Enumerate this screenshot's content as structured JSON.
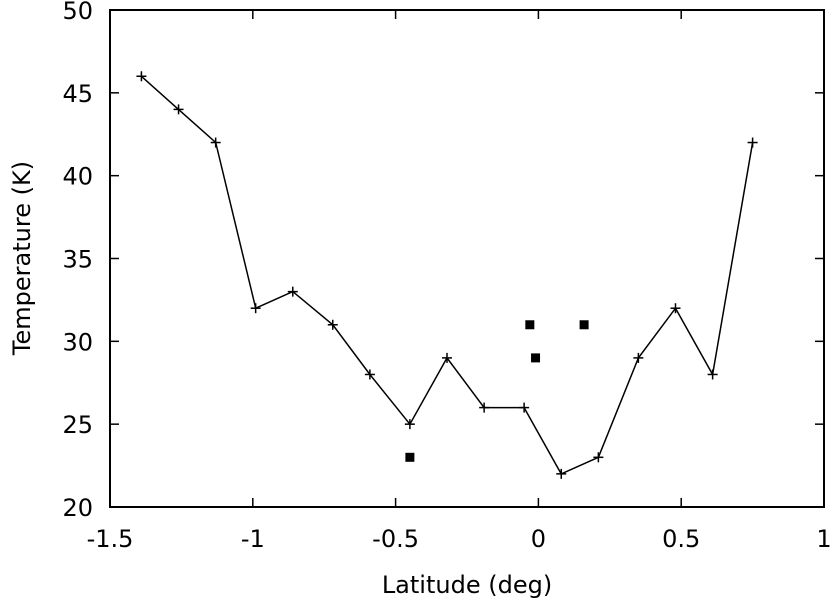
{
  "chart_data": {
    "type": "line",
    "title": "",
    "xlabel": "Latitude (deg)",
    "ylabel": "Temperature (K)",
    "xlim": [
      -1.5,
      1
    ],
    "ylim": [
      20,
      50
    ],
    "xticks": [
      -1.5,
      -1,
      -0.5,
      0,
      0.5,
      1
    ],
    "yticks": [
      20,
      25,
      30,
      35,
      40,
      45,
      50
    ],
    "xtick_labels": [
      "-1.5",
      "-1",
      "-0.5",
      "0",
      "0.5",
      "1"
    ],
    "ytick_labels": [
      "20",
      "25",
      "30",
      "35",
      "40",
      "45",
      "50"
    ],
    "grid": false,
    "legend": "none",
    "series": [
      {
        "style": "line-with-plus-markers",
        "color": "#000000",
        "x": [
          -1.39,
          -1.26,
          -1.13,
          -0.99,
          -0.86,
          -0.72,
          -0.59,
          -0.45,
          -0.32,
          -0.19,
          -0.05,
          0.08,
          0.21,
          0.35,
          0.48,
          0.61,
          0.75
        ],
        "y": [
          46,
          44,
          42,
          32,
          33,
          31,
          28,
          25,
          29,
          26,
          26,
          22,
          23,
          29,
          32,
          28,
          42
        ]
      },
      {
        "style": "square-markers",
        "color": "#000000",
        "x": [
          -0.45,
          -0.03,
          -0.01,
          0.16
        ],
        "y": [
          23,
          31,
          29,
          31
        ]
      }
    ]
  }
}
